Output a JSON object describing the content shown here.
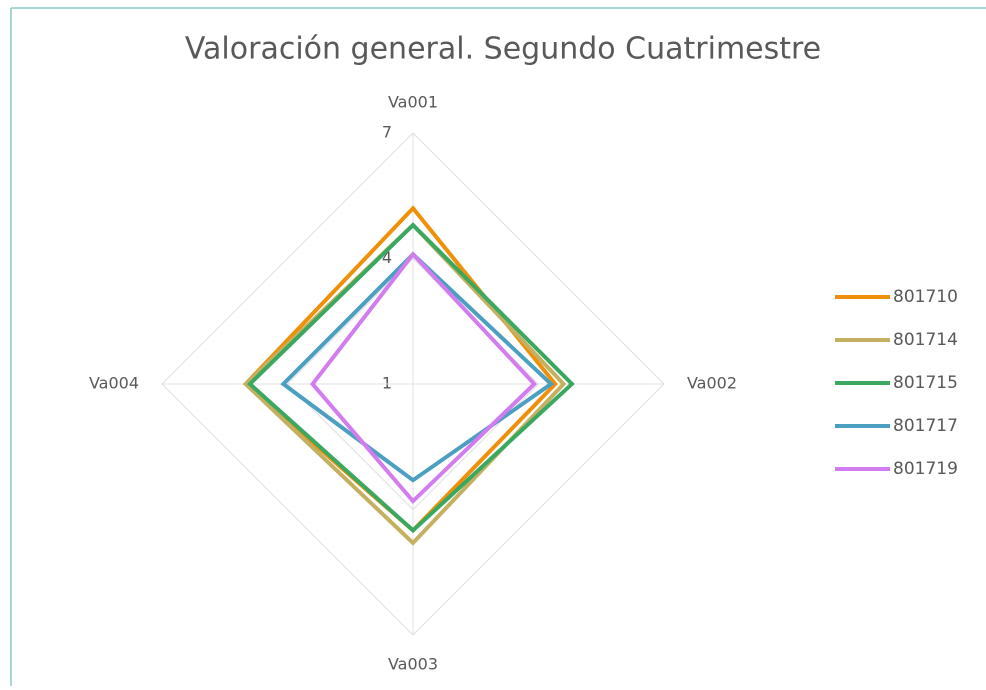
{
  "chart_data": {
    "type": "radar",
    "title": "Valoración general. Segundo Cuatrimestre",
    "categories": [
      "Va001",
      "Va002",
      "Va003",
      "Va004"
    ],
    "ylim": [
      1,
      7
    ],
    "yticks": [
      1,
      4,
      7
    ],
    "grid": true,
    "legend": "right",
    "series": [
      {
        "name": "801710",
        "color": "#f0900a",
        "values": [
          5.2,
          4.4,
          4.5,
          5.0
        ]
      },
      {
        "name": "801714",
        "color": "#c4b060",
        "values": [
          4.8,
          4.6,
          4.8,
          5.0
        ]
      },
      {
        "name": "801715",
        "color": "#3aa860",
        "values": [
          4.8,
          4.8,
          4.5,
          4.9
        ]
      },
      {
        "name": "801717",
        "color": "#4b9fc0",
        "values": [
          4.1,
          4.3,
          3.3,
          4.1
        ]
      },
      {
        "name": "801719",
        "color": "#d27cf0",
        "values": [
          4.1,
          3.9,
          3.8,
          3.4
        ]
      }
    ]
  }
}
